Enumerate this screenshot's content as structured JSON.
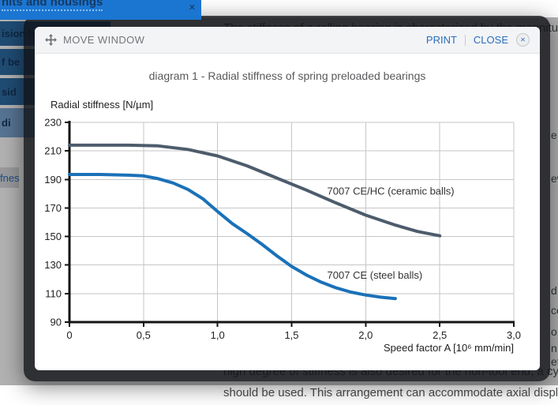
{
  "page": {
    "sidebar": {
      "header": {
        "label": "nits and housings",
        "close_icon": "✕"
      },
      "items": [
        {
          "label": "ision bearings",
          "highlighted": false
        },
        {
          "label": "f be",
          "highlighted": false
        },
        {
          "label": "sid",
          "highlighted": false
        },
        {
          "label": "di",
          "highlighted": true
        }
      ],
      "link_fragment": "fnes"
    },
    "background_text": {
      "top_line": "The stiffness of a rolling bearing is characterized by the magnitu",
      "bottom_line_dimmed": "high degree of stiffness is also desired for the non-tool end, a cy",
      "bottom_line": "should be used. This arrangement can accommodate axial displ",
      "right_fragments": [
        "e",
        "ew",
        "d",
        "ce",
        "o",
        "n",
        "et"
      ]
    },
    "colors": {
      "topbar_blue": "#1b76d2",
      "sidebar_blue": "#2e6da6",
      "sidebar_highlight": "#7ba6d3",
      "accent_blue": "#2a6ebb"
    }
  },
  "modal": {
    "toolbar": {
      "move_label": "MOVE WINDOW",
      "print_label": "PRINT",
      "close_label": "CLOSE",
      "close_icon": "✕"
    },
    "title": "diagram 1 - Radial stiffness of spring preloaded bearings"
  },
  "chart_data": {
    "type": "line",
    "title": "diagram 1 - Radial stiffness of spring preloaded bearings",
    "ylabel": "Radial stiffness [N/µm]",
    "xlabel": "Speed factor A [10⁶ mm/min]",
    "xlim": [
      0,
      3.0
    ],
    "ylim": [
      90,
      230
    ],
    "xticks": [
      0,
      0.5,
      1.0,
      1.5,
      2.0,
      2.5,
      3.0
    ],
    "xtick_labels": [
      "0",
      "0,5",
      "1,0",
      "1,5",
      "2,0",
      "2,5",
      "3,0"
    ],
    "yticks": [
      90,
      110,
      130,
      150,
      170,
      190,
      210,
      230
    ],
    "grid": true,
    "legend_position": "inline-labels",
    "series": [
      {
        "name": "7007 CE/HC (ceramic balls)",
        "color": "#4d5c6c",
        "label_anchor": {
          "x": 1.74,
          "y": 179.5
        },
        "points": [
          [
            0,
            214
          ],
          [
            0.2,
            214
          ],
          [
            0.4,
            214
          ],
          [
            0.6,
            213.5
          ],
          [
            0.8,
            211
          ],
          [
            1.0,
            206.5
          ],
          [
            1.2,
            199.5
          ],
          [
            1.4,
            191
          ],
          [
            1.6,
            182.5
          ],
          [
            1.8,
            173.5
          ],
          [
            2.0,
            165
          ],
          [
            2.2,
            158
          ],
          [
            2.35,
            153.5
          ],
          [
            2.5,
            150.5
          ]
        ]
      },
      {
        "name": "7007 CE (steel balls)",
        "color": "#1a71b8",
        "label_anchor": {
          "x": 1.74,
          "y": 120.5
        },
        "points": [
          [
            0,
            193.5
          ],
          [
            0.2,
            193.5
          ],
          [
            0.4,
            193
          ],
          [
            0.5,
            192.5
          ],
          [
            0.6,
            190.5
          ],
          [
            0.7,
            187.5
          ],
          [
            0.8,
            183
          ],
          [
            0.9,
            176.5
          ],
          [
            1.0,
            167.5
          ],
          [
            1.1,
            159
          ],
          [
            1.2,
            152
          ],
          [
            1.3,
            144.5
          ],
          [
            1.4,
            136.5
          ],
          [
            1.5,
            129
          ],
          [
            1.6,
            123
          ],
          [
            1.7,
            118
          ],
          [
            1.8,
            114
          ],
          [
            1.9,
            111
          ],
          [
            2.0,
            109
          ],
          [
            2.1,
            107.5
          ],
          [
            2.2,
            106.5
          ]
        ]
      }
    ]
  }
}
